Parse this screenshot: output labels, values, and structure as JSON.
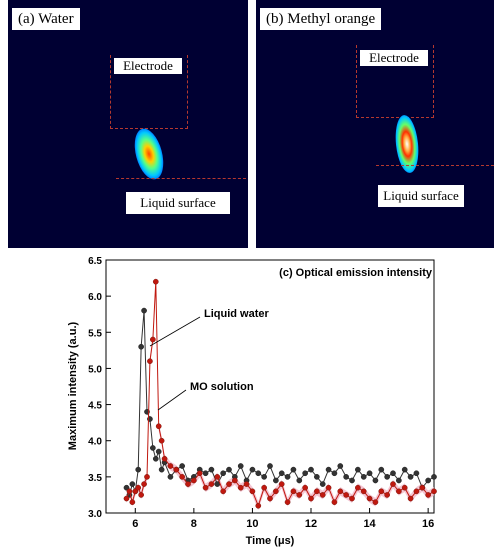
{
  "panels": {
    "a": {
      "label": "(a)  Water",
      "electrode": "Electrode",
      "surface": "Liquid surface"
    },
    "b": {
      "label": "(b)  Methyl orange",
      "electrode": "Electrode",
      "surface": "Liquid surface"
    }
  },
  "colors": {
    "water": "#333333",
    "mo": "#c0180f",
    "band": "#f3b8c8",
    "dash": "#b5382f",
    "image_bg": "#000033"
  },
  "chart_data": {
    "type": "line",
    "title": "(c) Optical emission intensity",
    "xlabel": "Time (μs)",
    "ylabel": "Maximum intensity (a.u.)",
    "xlim": [
      5.0,
      16.2
    ],
    "ylim": [
      3.0,
      6.5
    ],
    "xticks": [
      6,
      8,
      10,
      12,
      14,
      16
    ],
    "yticks": [
      3.0,
      3.5,
      4.0,
      4.5,
      5.0,
      5.5,
      6.0,
      6.5
    ],
    "annotations": [
      "Liquid water",
      "MO solution"
    ],
    "series": [
      {
        "name": "Liquid water",
        "color": "#333333",
        "x": [
          5.7,
          5.8,
          5.9,
          6.0,
          6.1,
          6.2,
          6.3,
          6.4,
          6.5,
          6.6,
          6.7,
          6.8,
          6.9,
          7.0,
          7.2,
          7.4,
          7.6,
          7.8,
          8.0,
          8.2,
          8.4,
          8.6,
          8.8,
          9.0,
          9.2,
          9.4,
          9.6,
          9.8,
          10.0,
          10.2,
          10.4,
          10.6,
          10.8,
          11.0,
          11.2,
          11.4,
          11.6,
          11.8,
          12.0,
          12.2,
          12.4,
          12.6,
          12.8,
          13.0,
          13.2,
          13.4,
          13.6,
          13.8,
          14.0,
          14.2,
          14.4,
          14.6,
          14.8,
          15.0,
          15.2,
          15.4,
          15.6,
          15.8,
          16.0,
          16.2
        ],
        "y": [
          3.35,
          3.25,
          3.4,
          3.3,
          3.6,
          5.3,
          5.8,
          4.4,
          4.3,
          3.9,
          3.75,
          3.85,
          3.6,
          3.7,
          3.5,
          3.6,
          3.65,
          3.45,
          3.5,
          3.6,
          3.55,
          3.6,
          3.4,
          3.55,
          3.6,
          3.5,
          3.65,
          3.45,
          3.6,
          3.55,
          3.5,
          3.65,
          3.45,
          3.55,
          3.5,
          3.6,
          3.45,
          3.55,
          3.6,
          3.5,
          3.4,
          3.6,
          3.55,
          3.65,
          3.5,
          3.45,
          3.6,
          3.5,
          3.55,
          3.45,
          3.6,
          3.5,
          3.55,
          3.45,
          3.6,
          3.5,
          3.55,
          3.35,
          3.45,
          3.5
        ]
      },
      {
        "name": "MO solution",
        "color": "#c0180f",
        "x": [
          5.7,
          5.8,
          5.9,
          6.0,
          6.1,
          6.2,
          6.3,
          6.4,
          6.5,
          6.6,
          6.7,
          6.8,
          6.9,
          7.0,
          7.2,
          7.4,
          7.6,
          7.8,
          8.0,
          8.2,
          8.4,
          8.6,
          8.8,
          9.0,
          9.2,
          9.4,
          9.6,
          9.8,
          10.0,
          10.2,
          10.4,
          10.6,
          10.8,
          11.0,
          11.2,
          11.4,
          11.6,
          11.8,
          12.0,
          12.2,
          12.4,
          12.6,
          12.8,
          13.0,
          13.2,
          13.4,
          13.6,
          13.8,
          14.0,
          14.2,
          14.4,
          14.6,
          14.8,
          15.0,
          15.2,
          15.4,
          15.6,
          15.8,
          16.0,
          16.2
        ],
        "y": [
          3.2,
          3.3,
          3.15,
          3.3,
          3.35,
          3.25,
          3.4,
          3.5,
          5.1,
          5.4,
          6.2,
          4.2,
          4.0,
          3.75,
          3.65,
          3.6,
          3.5,
          3.4,
          3.45,
          3.55,
          3.35,
          3.4,
          3.5,
          3.3,
          3.4,
          3.45,
          3.35,
          3.4,
          3.3,
          3.1,
          3.35,
          3.2,
          3.3,
          3.4,
          3.15,
          3.3,
          3.25,
          3.35,
          3.2,
          3.3,
          3.25,
          3.35,
          3.15,
          3.3,
          3.25,
          3.2,
          3.35,
          3.3,
          3.2,
          3.15,
          3.3,
          3.25,
          3.4,
          3.3,
          3.35,
          3.2,
          3.3,
          3.35,
          3.25,
          3.3
        ]
      }
    ]
  }
}
